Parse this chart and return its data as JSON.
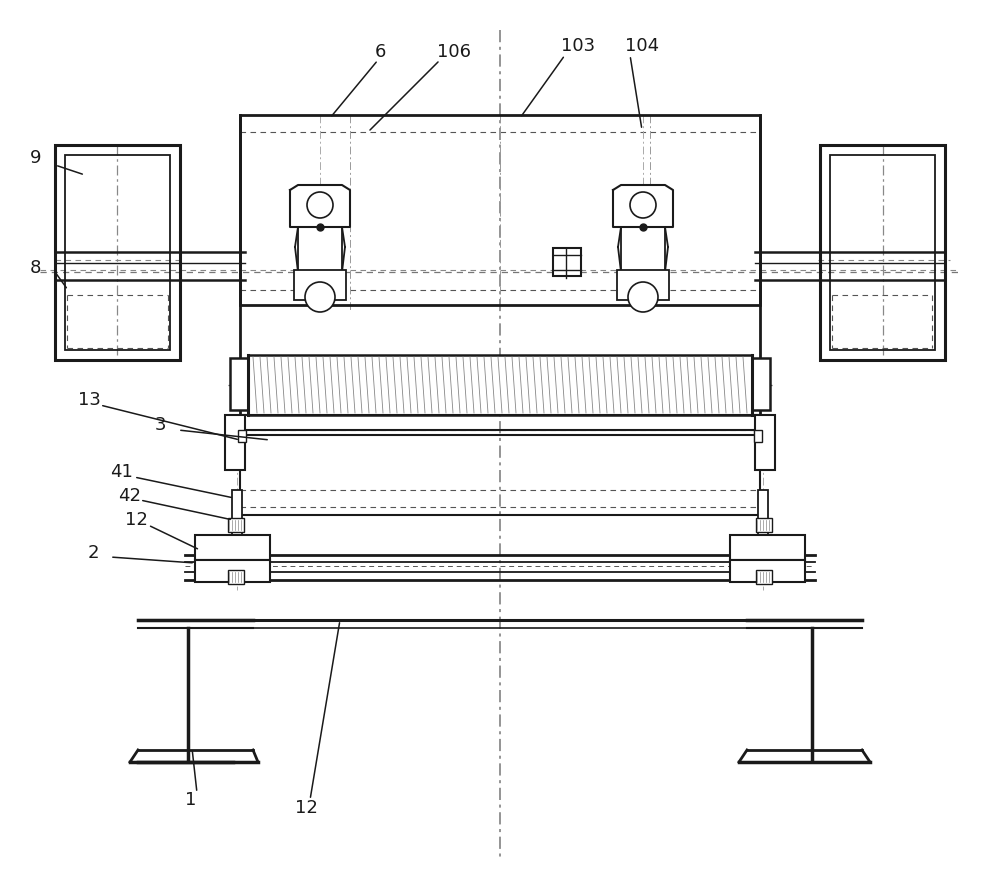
{
  "bg_color": "#ffffff",
  "lc": "#1a1a1a",
  "dc": "#555555",
  "figsize": [
    10.0,
    8.82
  ],
  "dpi": 100
}
